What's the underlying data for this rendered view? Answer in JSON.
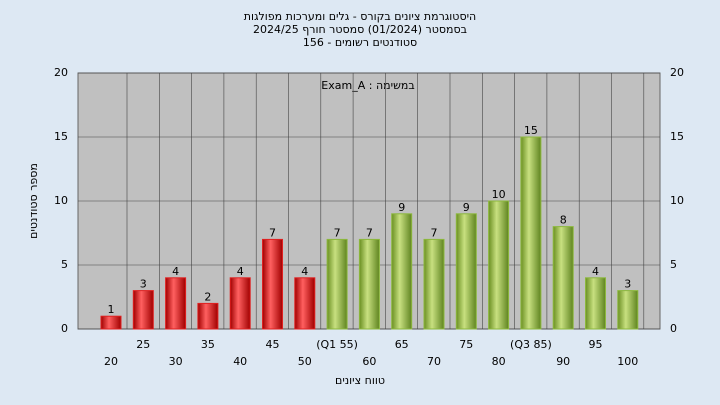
{
  "chart_data": {
    "type": "bar",
    "title": "היסטוגרמת ציונים בקורס - גלים ומערכות מפולגות",
    "subtitle": "בסמסטר  (01/2024)  סמסטר חורף 2024/25",
    "subtitle2": "סטודנטים רשומים - 156",
    "annotation": "במשימה : Exam_A",
    "x_label": "טווח ציונים",
    "y_label": "מספר סטודנטים",
    "categories": [
      "20",
      "25",
      "30",
      "35",
      "40",
      "45",
      "50",
      "(Q1 55)",
      "60",
      "65",
      "70",
      "75",
      "80",
      "(Q3 85)",
      "90",
      "95",
      "100"
    ],
    "values": [
      1,
      3,
      4,
      2,
      4,
      7,
      4,
      7,
      7,
      9,
      7,
      9,
      10,
      15,
      8,
      4,
      3
    ],
    "colors": [
      "#e02020",
      "#e02020",
      "#e02020",
      "#e02020",
      "#e02020",
      "#e02020",
      "#e02020",
      "#8cb83c",
      "#8cb83c",
      "#8cb83c",
      "#8cb83c",
      "#8cb83c",
      "#8cb83c",
      "#8cb83c",
      "#8cb83c",
      "#8cb83c",
      "#8cb83c"
    ],
    "ylim": [
      0,
      20
    ],
    "yticks": [
      0,
      5,
      10,
      15,
      20
    ],
    "grid": true
  }
}
